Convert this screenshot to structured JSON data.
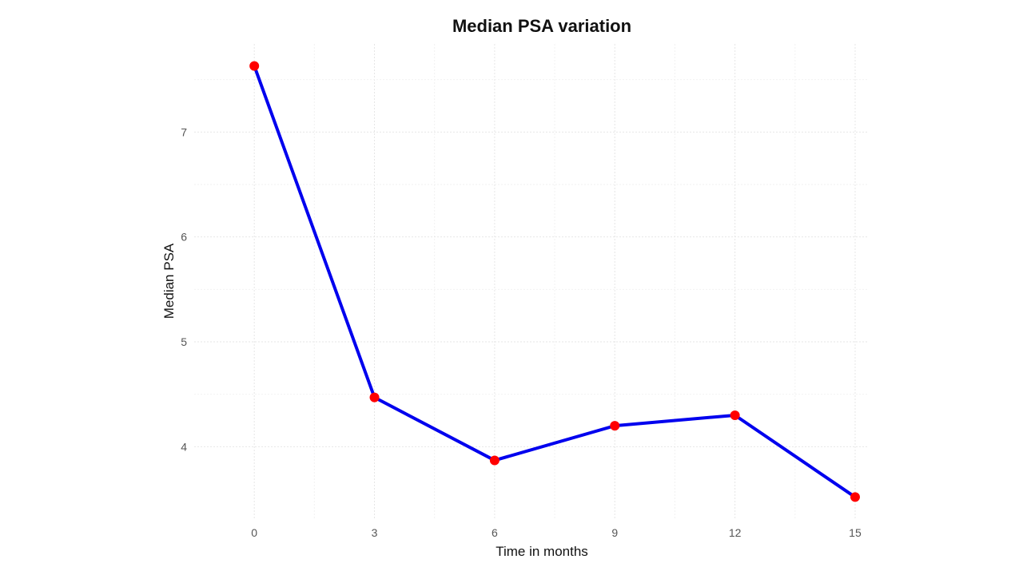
{
  "chart_data": {
    "type": "line",
    "title": "Median PSA variation",
    "xlabel": "Time in months",
    "ylabel": "Median PSA",
    "x": [
      0,
      3,
      6,
      9,
      12,
      15
    ],
    "series": [
      {
        "name": "Median PSA",
        "values": [
          7.63,
          4.47,
          3.87,
          4.2,
          4.3,
          3.52
        ]
      }
    ],
    "xticks": [
      "0",
      "3",
      "6",
      "9",
      "12",
      "15"
    ],
    "yticks": [
      "4",
      "5",
      "6",
      "7"
    ],
    "xlim": [
      -1.5,
      15.3
    ],
    "ylim": [
      3.31,
      7.84
    ],
    "grid": true,
    "line_color": "#0000ee",
    "marker_color": "#ff0000"
  }
}
